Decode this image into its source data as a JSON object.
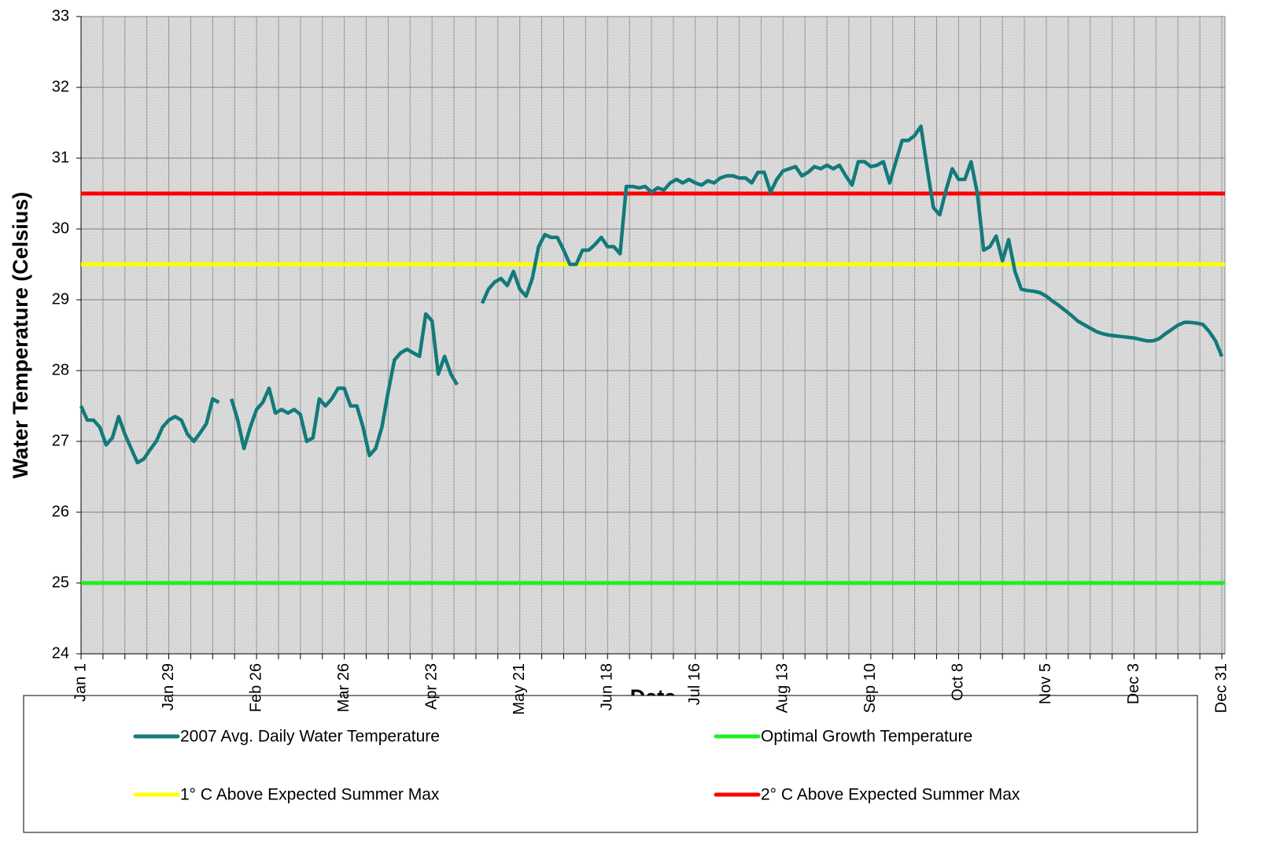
{
  "chart_data": {
    "type": "line",
    "xlabel": "Date",
    "ylabel": "Water Temperature (Celsius)",
    "categories": [
      "Jan 1",
      null,
      null,
      null,
      null,
      null,
      null,
      null,
      null,
      null,
      null,
      null,
      null,
      null,
      "Jan 29",
      null,
      null,
      null,
      null,
      null,
      null,
      null,
      null,
      null,
      null,
      null,
      null,
      null,
      "Feb 26",
      null,
      null,
      null,
      null,
      null,
      null,
      null,
      null,
      null,
      null,
      null,
      null,
      null,
      "Mar 26",
      null,
      null,
      null,
      null,
      null,
      null,
      null,
      null,
      null,
      null,
      null,
      null,
      null,
      "Apr 23",
      null,
      null,
      null,
      null,
      null,
      null,
      null,
      null,
      null,
      null,
      null,
      null,
      null,
      "May 21",
      null,
      null,
      null,
      null,
      null,
      null,
      null,
      null,
      null,
      null,
      null,
      null,
      null,
      "Jun 18",
      null,
      null,
      null,
      null,
      null,
      null,
      null,
      null,
      null,
      null,
      null,
      null,
      null,
      "Jul 16",
      null,
      null,
      null,
      null,
      null,
      null,
      null,
      null,
      null,
      null,
      null,
      null,
      null,
      "Aug 13",
      null,
      null,
      null,
      null,
      null,
      null,
      null,
      null,
      null,
      null,
      null,
      null,
      null,
      "Sep 10",
      null,
      null,
      null,
      null,
      null,
      null,
      null,
      null,
      null,
      null,
      null,
      null,
      null,
      "Oct 8",
      null,
      null,
      null,
      null,
      null,
      null,
      null,
      null,
      null,
      null,
      null,
      null,
      null,
      "Nov 5",
      null,
      null,
      null,
      null,
      null,
      null,
      null,
      null,
      null,
      null,
      null,
      null,
      null,
      "Dec 3",
      null,
      null,
      null,
      null,
      null,
      null,
      null,
      null,
      null,
      null,
      null,
      null,
      null,
      "Dec 31"
    ],
    "series": [
      {
        "name": "2007 Avg. Daily Water Temperature",
        "color": "#137a7a",
        "values": [
          27.5,
          27.3,
          27.3,
          27.2,
          26.95,
          27.05,
          27.35,
          27.1,
          26.9,
          26.7,
          26.75,
          26.88,
          27.0,
          27.2,
          27.3,
          27.35,
          27.3,
          27.1,
          27.0,
          27.12,
          27.25,
          27.6,
          27.55,
          null,
          27.6,
          27.3,
          26.9,
          27.2,
          27.45,
          27.55,
          27.75,
          27.4,
          27.45,
          27.4,
          27.45,
          27.38,
          27.0,
          27.05,
          27.6,
          27.5,
          27.6,
          27.75,
          27.75,
          27.5,
          27.5,
          27.2,
          26.8,
          26.9,
          27.2,
          27.7,
          28.15,
          28.25,
          28.3,
          28.25,
          28.2,
          28.8,
          28.7,
          27.95,
          28.2,
          27.95,
          27.8,
          null,
          null,
          null,
          28.95,
          29.15,
          29.25,
          29.3,
          29.2,
          29.4,
          29.15,
          29.05,
          29.3,
          29.75,
          29.92,
          29.88,
          29.88,
          29.7,
          29.5,
          29.5,
          29.7,
          29.7,
          29.78,
          29.88,
          29.75,
          29.75,
          29.65,
          30.6,
          30.6,
          30.58,
          30.6,
          30.52,
          30.58,
          30.55,
          30.65,
          30.7,
          30.65,
          30.7,
          30.65,
          30.62,
          30.68,
          30.65,
          30.72,
          30.75,
          30.75,
          30.72,
          30.72,
          30.65,
          30.8,
          30.8,
          30.52,
          30.7,
          30.82,
          30.85,
          30.88,
          30.75,
          30.8,
          30.88,
          30.85,
          30.9,
          30.85,
          30.9,
          30.75,
          30.62,
          30.95,
          30.95,
          30.88,
          30.9,
          30.95,
          30.65,
          30.95,
          31.25,
          31.25,
          31.32,
          31.45,
          30.85,
          30.3,
          30.2,
          30.55,
          30.85,
          30.7,
          30.7,
          30.95,
          30.5,
          29.7,
          29.75,
          29.9,
          29.55,
          29.85,
          29.4,
          29.15,
          29.13,
          29.12,
          29.1,
          29.05,
          28.98,
          28.92,
          28.85,
          28.78,
          28.7,
          28.65,
          28.6,
          28.55,
          28.52,
          28.5,
          28.49,
          28.48,
          28.47,
          28.46,
          28.44,
          28.42,
          28.42,
          28.45,
          28.52,
          28.58,
          28.64,
          28.68,
          28.68,
          28.67,
          28.65,
          28.55,
          28.42,
          28.2
        ]
      }
    ],
    "reference_lines": [
      {
        "name": "Optimal Growth Temperature",
        "color": "#22ee22",
        "value": 25
      },
      {
        "name": "1° C Above Expected Summer Max",
        "color": "#ffff00",
        "value": 29.5
      },
      {
        "name": "2° C Above Expected Summer Max",
        "color": "#ff0000",
        "value": 30.5
      }
    ],
    "ylim": [
      24,
      33
    ],
    "yticks": [
      24,
      25,
      26,
      27,
      28,
      29,
      30,
      31,
      32,
      33
    ],
    "grid": true
  }
}
